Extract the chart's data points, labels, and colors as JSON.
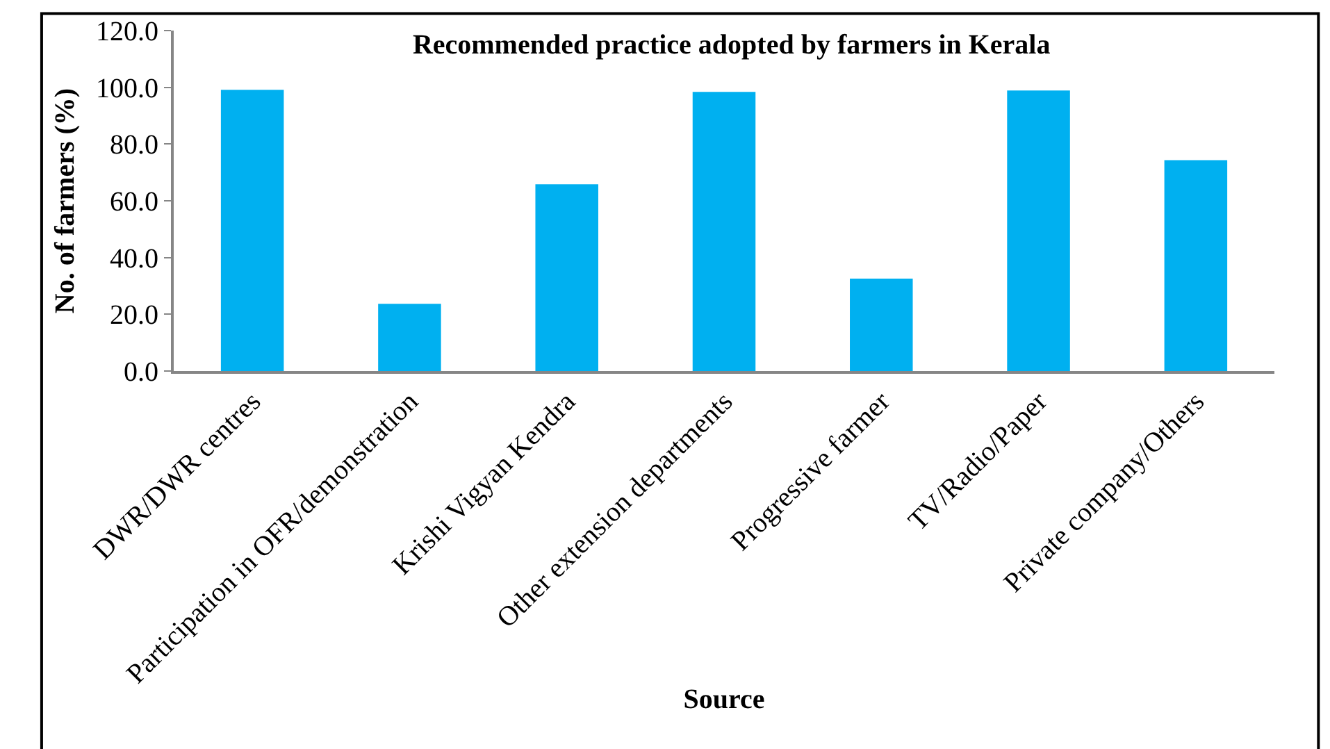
{
  "chart_data": {
    "type": "bar",
    "title": "Recommended practice adopted by farmers in Kerala",
    "xlabel": "Source",
    "ylabel": "No. of farmers (%)",
    "categories": [
      "DWR/DWR centres",
      "Participation in OFR/demonstration",
      "Krishi Vigyan Kendra",
      "Other extension departments",
      "Progressive farmer",
      "TV/Radio/Paper",
      "Private company/Others"
    ],
    "values": [
      99.1,
      23.7,
      65.8,
      98.4,
      32.6,
      98.9,
      74.3
    ],
    "color": "#00b0f0",
    "ylim": [
      0,
      120
    ],
    "yticks": [
      {
        "value": 0,
        "label": "0.0"
      },
      {
        "value": 20,
        "label": "20.0"
      },
      {
        "value": 40,
        "label": "40.0"
      },
      {
        "value": 60,
        "label": "60.0"
      },
      {
        "value": 80,
        "label": "80.0"
      },
      {
        "value": 100,
        "label": "100.0"
      },
      {
        "value": 120,
        "label": "120.0"
      }
    ],
    "grid": false
  }
}
